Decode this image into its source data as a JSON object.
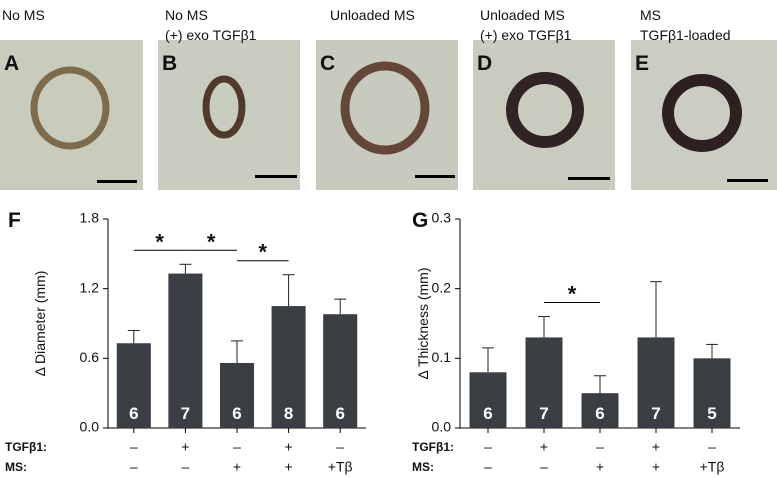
{
  "images": [
    {
      "letter": "A",
      "title": [
        "No MS"
      ]
    },
    {
      "letter": "B",
      "title": [
        "No MS",
        "(+) exo TGFβ1"
      ]
    },
    {
      "letter": "C",
      "title": [
        "Unloaded MS"
      ]
    },
    {
      "letter": "D",
      "title": [
        "Unloaded MS",
        "(+) exo TGFβ1"
      ]
    },
    {
      "letter": "E",
      "title": [
        "MS",
        "TGFβ1-loaded"
      ]
    }
  ],
  "chart_data": [
    {
      "type": "bar",
      "panel": "F",
      "ylabel": "Δ Diameter (mm)",
      "color": "#3b3e43",
      "values": [
        0.73,
        1.33,
        0.56,
        1.05,
        0.98
      ],
      "errors": [
        0.11,
        0.08,
        0.19,
        0.27,
        0.13
      ],
      "n": [
        6,
        7,
        6,
        8,
        6
      ],
      "ylim": [
        0,
        1.8
      ],
      "yticks": [
        {
          "value": 0,
          "label": "0.0"
        },
        {
          "value": 0.6,
          "label": "0.6"
        },
        {
          "value": 1.2,
          "label": "1.2"
        },
        {
          "value": 1.8,
          "label": "1.8"
        }
      ],
      "rows": [
        {
          "label": "TGFβ1:",
          "values": [
            "–",
            "+",
            "–",
            "+",
            "–"
          ]
        },
        {
          "label": "MS:",
          "values": [
            "–",
            "–",
            "+",
            "+",
            "+Tβ"
          ]
        }
      ],
      "significance": [
        {
          "label": "*",
          "categories": [
            0,
            1
          ]
        },
        {
          "label": "*",
          "categories": [
            1,
            2
          ]
        },
        {
          "label": "*",
          "categories": [
            2,
            3
          ]
        }
      ]
    },
    {
      "type": "bar",
      "panel": "G",
      "ylabel": "Δ Thickness (mm)",
      "color": "#3b3e43",
      "values": [
        0.08,
        0.13,
        0.05,
        0.13,
        0.1
      ],
      "errors": [
        0.035,
        0.03,
        0.025,
        0.08,
        0.02
      ],
      "n": [
        6,
        7,
        6,
        7,
        5
      ],
      "ylim": [
        0,
        0.3
      ],
      "yticks": [
        {
          "value": 0,
          "label": "0.0"
        },
        {
          "value": 0.1,
          "label": "0.1"
        },
        {
          "value": 0.2,
          "label": "0.2"
        },
        {
          "value": 0.3,
          "label": "0.3"
        }
      ],
      "rows": [
        {
          "label": "TGFβ1:",
          "values": [
            "–",
            "+",
            "–",
            "+",
            "–"
          ]
        },
        {
          "label": "MS:",
          "values": [
            "–",
            "–",
            "+",
            "+",
            "+Tβ"
          ]
        }
      ],
      "significance": [
        {
          "label": "*",
          "categories": [
            1,
            2
          ]
        }
      ]
    }
  ]
}
